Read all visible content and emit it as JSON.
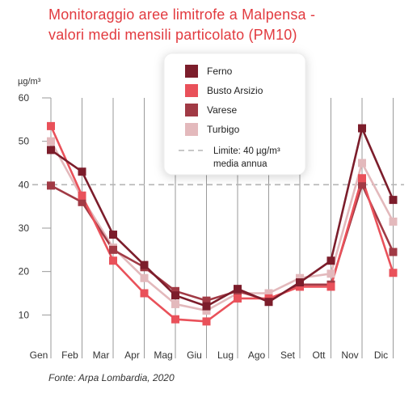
{
  "title_lines": [
    "Monitoraggio aree limitrofe a Malpensa -",
    "valori medi mensili particolato (PM10)"
  ],
  "source": "Fonte: Arpa Lombardia, 2020",
  "colors": {
    "title": "#e23a3f"
  },
  "chart_data": {
    "type": "line",
    "title": "Monitoraggio aree limitrofe a Malpensa - valori medi mensili particolato (PM10)",
    "ylabel": "µg/m³",
    "xlabel": "",
    "categories": [
      "Gen",
      "Feb",
      "Mar",
      "Apr",
      "Mag",
      "Giu",
      "Lug",
      "Ago",
      "Set",
      "Ott",
      "Nov",
      "Dic"
    ],
    "ylim": [
      0,
      60
    ],
    "yticks": [
      10,
      20,
      30,
      40,
      50,
      60
    ],
    "grid": "vertical",
    "legend_position": "top-right",
    "series": [
      {
        "name": "Ferno",
        "color": "#7c1d2b",
        "values": [
          48,
          43,
          28.5,
          21.5,
          14.5,
          12,
          16,
          13,
          17.5,
          22.5,
          53,
          36.5
        ]
      },
      {
        "name": "Busto Arsizio",
        "color": "#e9515a",
        "values": [
          53.5,
          37.5,
          22.5,
          15,
          9,
          8.5,
          13.8,
          13.8,
          16.5,
          16.5,
          41.5,
          19.7
        ]
      },
      {
        "name": "Varese",
        "color": "#a13a45",
        "values": [
          39.8,
          36,
          25,
          21,
          15.5,
          13.3,
          15.5,
          13.3,
          17,
          17,
          40,
          24.5
        ]
      },
      {
        "name": "Turbigo",
        "color": "#e3b9bc",
        "values": [
          50,
          37,
          25.5,
          18.5,
          12.5,
          11,
          15,
          15,
          18.5,
          19.5,
          45,
          31.5
        ]
      }
    ],
    "reference_line": {
      "value": 40,
      "label_lines": [
        "Limite: 40 µg/m³",
        "media annua"
      ],
      "color": "#b5b5b5"
    }
  }
}
